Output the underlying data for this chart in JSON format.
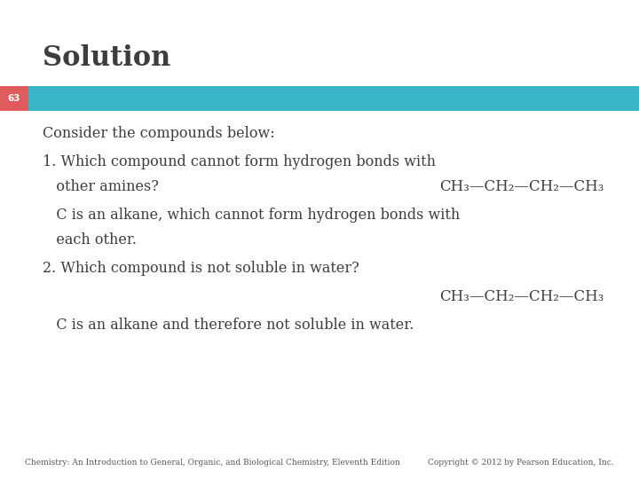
{
  "title": "Solution",
  "title_color": "#3d3d3d",
  "title_fontsize": 22,
  "slide_num": "63",
  "slide_num_bg": "#e05c5c",
  "slide_num_color": "#ffffff",
  "bar_color": "#3ab5c6",
  "background_color": "#ffffff",
  "body_text_color": "#3d3d3d",
  "body_fontsize": 11.5,
  "footer_left": "Chemistry: An Introduction to General, Organic, and Biological Chemistry, Eleventh Edition",
  "footer_right": "Copyright © 2012 by Pearson Education, Inc.",
  "footer_fontsize": 6.5,
  "footer_color": "#555555",
  "line1": "Consider the compounds below:",
  "line2": "1. Which compound cannot form hydrogen bonds with",
  "line3_left": "   other amines?",
  "line3_right": "CH₃—CH₂—CH₂—CH₃",
  "line4": "   C is an alkane, which cannot form hydrogen bonds with",
  "line5": "   each other.",
  "line6": "2. Which compound is not soluble in water?",
  "line7_right": "CH₃—CH₂—CH₂—CH₃",
  "line8": "   C is an alkane and therefore not soluble in water."
}
